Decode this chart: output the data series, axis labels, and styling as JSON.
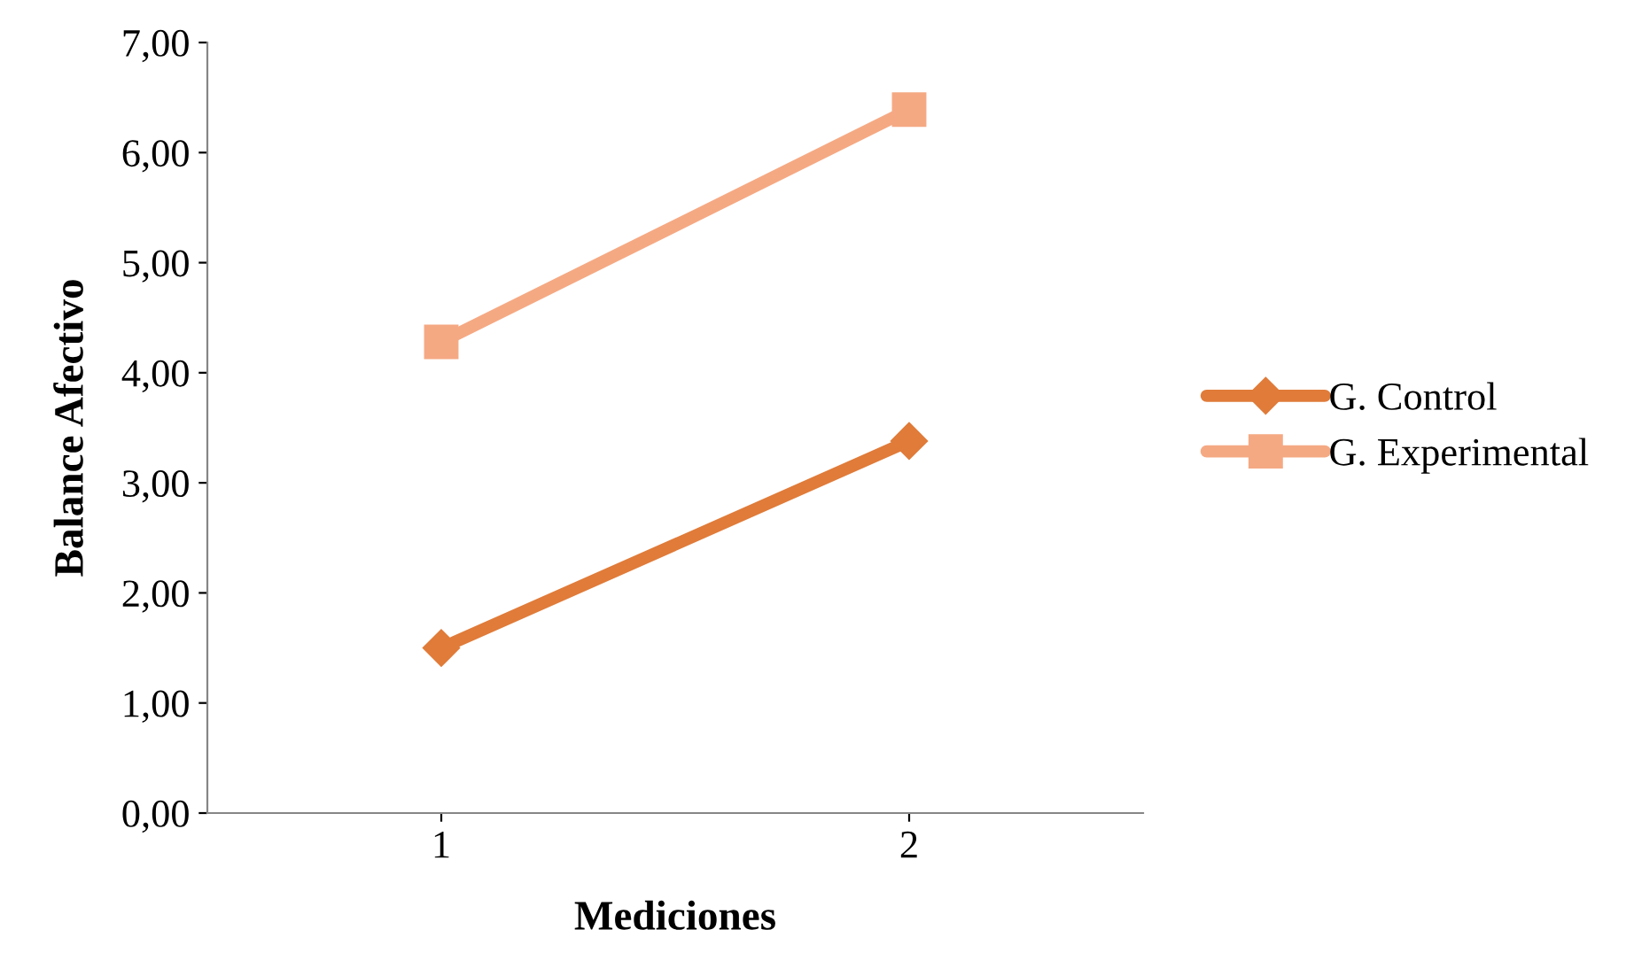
{
  "chart_data": {
    "type": "line",
    "xlabel": "Mediciones",
    "ylabel": "Balance Afectivo",
    "categories": [
      "1",
      "2"
    ],
    "series": [
      {
        "name": "G. Control",
        "color": "#e07b39",
        "marker": "diamond",
        "values": [
          1.5,
          3.38
        ]
      },
      {
        "name": "G. Experimental",
        "color": "#f5a983",
        "marker": "square",
        "values": [
          4.28,
          6.39
        ]
      }
    ],
    "ylim": [
      0,
      7
    ],
    "yticks": [
      {
        "value": 0,
        "label": "0,00"
      },
      {
        "value": 1,
        "label": "1,00"
      },
      {
        "value": 2,
        "label": "2,00"
      },
      {
        "value": 3,
        "label": "3,00"
      },
      {
        "value": 4,
        "label": "4,00"
      },
      {
        "value": 5,
        "label": "5,00"
      },
      {
        "value": 6,
        "label": "6,00"
      },
      {
        "value": 7,
        "label": "7,00"
      }
    ],
    "grid": false,
    "legend": "right",
    "line_style": "solid"
  }
}
